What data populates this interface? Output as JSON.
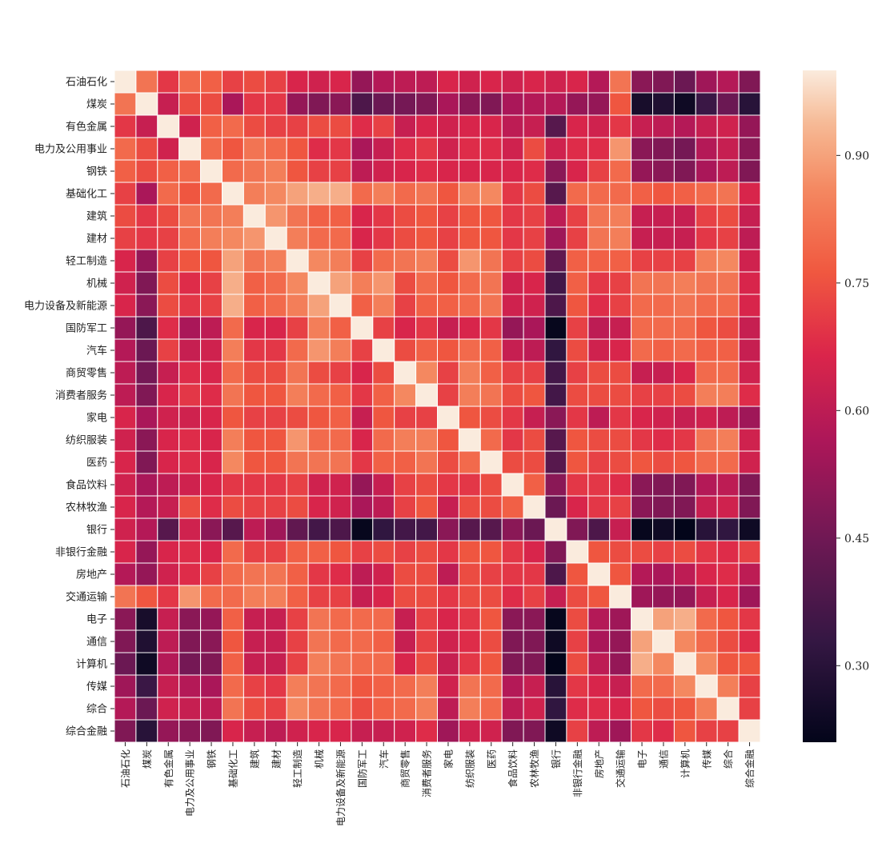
{
  "chart_data": {
    "type": "heatmap",
    "title": "",
    "xlabel": "",
    "ylabel": "",
    "labels": [
      "石油石化",
      "煤炭",
      "有色金属",
      "电力及公用事业",
      "钢铁",
      "基础化工",
      "建筑",
      "建材",
      "轻工制造",
      "机械",
      "电力设备及新能源",
      "国防军工",
      "汽车",
      "商贸零售",
      "消费者服务",
      "家电",
      "纺织服装",
      "医药",
      "食品饮料",
      "农林牧渔",
      "银行",
      "非银行金融",
      "房地产",
      "交通运输",
      "电子",
      "通信",
      "计算机",
      "传媒",
      "综合",
      "综合金融"
    ],
    "value_range": [
      0.21,
      1.0
    ],
    "colorbar_ticks": [
      0.3,
      0.45,
      0.6,
      0.75,
      0.9
    ],
    "colorbar_tick_labels": [
      "0.30",
      "0.45",
      "0.60",
      "0.75",
      "0.90"
    ],
    "colormap": "rocket",
    "cell_borders": "white",
    "matrix": [
      [
        1.0,
        0.82,
        0.7,
        0.8,
        0.78,
        0.72,
        0.74,
        0.72,
        0.66,
        0.64,
        0.66,
        0.52,
        0.58,
        0.6,
        0.6,
        0.66,
        0.64,
        0.66,
        0.64,
        0.66,
        0.64,
        0.66,
        0.58,
        0.82,
        0.5,
        0.48,
        0.44,
        0.54,
        0.58,
        0.48
      ],
      [
        0.82,
        1.0,
        0.62,
        0.74,
        0.74,
        0.56,
        0.7,
        0.7,
        0.52,
        0.48,
        0.5,
        0.38,
        0.44,
        0.46,
        0.48,
        0.56,
        0.5,
        0.48,
        0.56,
        0.58,
        0.58,
        0.52,
        0.52,
        0.76,
        0.26,
        0.28,
        0.24,
        0.34,
        0.44,
        0.3
      ],
      [
        0.7,
        0.62,
        1.0,
        0.64,
        0.78,
        0.8,
        0.74,
        0.72,
        0.72,
        0.74,
        0.74,
        0.68,
        0.72,
        0.62,
        0.66,
        0.64,
        0.66,
        0.66,
        0.6,
        0.62,
        0.4,
        0.66,
        0.64,
        0.7,
        0.62,
        0.6,
        0.58,
        0.62,
        0.64,
        0.52
      ],
      [
        0.8,
        0.74,
        0.64,
        1.0,
        0.8,
        0.76,
        0.82,
        0.8,
        0.76,
        0.68,
        0.7,
        0.56,
        0.62,
        0.68,
        0.7,
        0.64,
        0.68,
        0.68,
        0.64,
        0.74,
        0.64,
        0.68,
        0.68,
        0.88,
        0.5,
        0.48,
        0.46,
        0.58,
        0.62,
        0.5
      ],
      [
        0.78,
        0.74,
        0.78,
        0.8,
        1.0,
        0.8,
        0.82,
        0.84,
        0.76,
        0.72,
        0.72,
        0.6,
        0.64,
        0.66,
        0.68,
        0.66,
        0.66,
        0.66,
        0.66,
        0.68,
        0.5,
        0.66,
        0.72,
        0.8,
        0.52,
        0.5,
        0.48,
        0.56,
        0.6,
        0.48
      ],
      [
        0.72,
        0.56,
        0.8,
        0.76,
        0.8,
        1.0,
        0.84,
        0.86,
        0.9,
        0.92,
        0.92,
        0.8,
        0.84,
        0.8,
        0.82,
        0.76,
        0.84,
        0.86,
        0.7,
        0.74,
        0.4,
        0.8,
        0.8,
        0.8,
        0.78,
        0.76,
        0.78,
        0.8,
        0.82,
        0.66
      ],
      [
        0.74,
        0.7,
        0.74,
        0.82,
        0.82,
        0.84,
        1.0,
        0.88,
        0.82,
        0.78,
        0.78,
        0.66,
        0.7,
        0.74,
        0.76,
        0.72,
        0.76,
        0.76,
        0.7,
        0.72,
        0.6,
        0.72,
        0.82,
        0.84,
        0.62,
        0.62,
        0.62,
        0.72,
        0.74,
        0.62
      ],
      [
        0.72,
        0.7,
        0.72,
        0.8,
        0.84,
        0.86,
        0.88,
        1.0,
        0.84,
        0.8,
        0.8,
        0.66,
        0.7,
        0.74,
        0.76,
        0.72,
        0.76,
        0.76,
        0.7,
        0.72,
        0.54,
        0.72,
        0.82,
        0.84,
        0.62,
        0.62,
        0.62,
        0.7,
        0.72,
        0.6
      ],
      [
        0.66,
        0.52,
        0.72,
        0.76,
        0.76,
        0.9,
        0.82,
        0.84,
        1.0,
        0.86,
        0.84,
        0.72,
        0.8,
        0.82,
        0.84,
        0.74,
        0.88,
        0.82,
        0.72,
        0.74,
        0.42,
        0.78,
        0.78,
        0.78,
        0.72,
        0.72,
        0.72,
        0.84,
        0.86,
        0.64
      ],
      [
        0.64,
        0.48,
        0.74,
        0.68,
        0.72,
        0.92,
        0.78,
        0.8,
        0.86,
        1.0,
        0.9,
        0.84,
        0.88,
        0.74,
        0.8,
        0.76,
        0.8,
        0.82,
        0.64,
        0.66,
        0.36,
        0.78,
        0.7,
        0.72,
        0.82,
        0.82,
        0.84,
        0.82,
        0.82,
        0.66
      ],
      [
        0.66,
        0.5,
        0.74,
        0.7,
        0.72,
        0.92,
        0.78,
        0.8,
        0.84,
        0.9,
        1.0,
        0.78,
        0.84,
        0.72,
        0.78,
        0.78,
        0.8,
        0.82,
        0.64,
        0.64,
        0.38,
        0.76,
        0.68,
        0.72,
        0.8,
        0.8,
        0.82,
        0.8,
        0.8,
        0.66
      ],
      [
        0.52,
        0.38,
        0.68,
        0.56,
        0.6,
        0.8,
        0.66,
        0.66,
        0.72,
        0.84,
        0.78,
        1.0,
        0.72,
        0.66,
        0.7,
        0.62,
        0.66,
        0.7,
        0.52,
        0.56,
        0.22,
        0.72,
        0.6,
        0.62,
        0.8,
        0.8,
        0.8,
        0.76,
        0.74,
        0.62
      ],
      [
        0.58,
        0.44,
        0.72,
        0.62,
        0.64,
        0.84,
        0.7,
        0.7,
        0.8,
        0.88,
        0.84,
        0.72,
        1.0,
        0.74,
        0.78,
        0.76,
        0.8,
        0.78,
        0.62,
        0.6,
        0.32,
        0.74,
        0.64,
        0.66,
        0.8,
        0.78,
        0.8,
        0.78,
        0.78,
        0.62
      ],
      [
        0.6,
        0.46,
        0.62,
        0.68,
        0.66,
        0.8,
        0.74,
        0.74,
        0.82,
        0.74,
        0.72,
        0.66,
        0.74,
        1.0,
        0.86,
        0.72,
        0.84,
        0.78,
        0.72,
        0.72,
        0.36,
        0.72,
        0.74,
        0.74,
        0.62,
        0.62,
        0.66,
        0.8,
        0.8,
        0.64
      ],
      [
        0.6,
        0.48,
        0.66,
        0.7,
        0.68,
        0.82,
        0.76,
        0.76,
        0.84,
        0.8,
        0.78,
        0.7,
        0.78,
        0.86,
        1.0,
        0.72,
        0.84,
        0.82,
        0.74,
        0.76,
        0.36,
        0.74,
        0.74,
        0.74,
        0.72,
        0.72,
        0.74,
        0.84,
        0.84,
        0.68
      ],
      [
        0.66,
        0.56,
        0.64,
        0.64,
        0.66,
        0.76,
        0.72,
        0.72,
        0.74,
        0.76,
        0.78,
        0.62,
        0.76,
        0.72,
        0.72,
        1.0,
        0.76,
        0.74,
        0.7,
        0.62,
        0.5,
        0.7,
        0.6,
        0.7,
        0.66,
        0.64,
        0.62,
        0.64,
        0.6,
        0.54
      ],
      [
        0.64,
        0.5,
        0.66,
        0.68,
        0.66,
        0.84,
        0.76,
        0.76,
        0.88,
        0.8,
        0.8,
        0.66,
        0.8,
        0.84,
        0.84,
        0.76,
        1.0,
        0.8,
        0.7,
        0.74,
        0.4,
        0.76,
        0.74,
        0.74,
        0.7,
        0.68,
        0.7,
        0.82,
        0.84,
        0.64
      ],
      [
        0.66,
        0.48,
        0.66,
        0.68,
        0.66,
        0.86,
        0.76,
        0.76,
        0.82,
        0.82,
        0.82,
        0.7,
        0.78,
        0.78,
        0.82,
        0.74,
        0.8,
        1.0,
        0.74,
        0.74,
        0.4,
        0.76,
        0.72,
        0.74,
        0.76,
        0.74,
        0.76,
        0.8,
        0.8,
        0.64
      ],
      [
        0.64,
        0.56,
        0.6,
        0.64,
        0.66,
        0.7,
        0.7,
        0.7,
        0.72,
        0.64,
        0.64,
        0.52,
        0.62,
        0.72,
        0.74,
        0.7,
        0.7,
        0.74,
        1.0,
        0.78,
        0.5,
        0.7,
        0.7,
        0.68,
        0.5,
        0.48,
        0.48,
        0.58,
        0.6,
        0.48
      ],
      [
        0.66,
        0.58,
        0.62,
        0.74,
        0.68,
        0.74,
        0.72,
        0.72,
        0.74,
        0.66,
        0.64,
        0.56,
        0.6,
        0.72,
        0.76,
        0.62,
        0.74,
        0.74,
        0.78,
        1.0,
        0.44,
        0.66,
        0.7,
        0.72,
        0.5,
        0.48,
        0.48,
        0.62,
        0.64,
        0.48
      ],
      [
        0.64,
        0.58,
        0.4,
        0.64,
        0.5,
        0.4,
        0.6,
        0.54,
        0.42,
        0.36,
        0.38,
        0.22,
        0.32,
        0.36,
        0.36,
        0.5,
        0.4,
        0.4,
        0.5,
        0.44,
        1.0,
        0.48,
        0.38,
        0.62,
        0.22,
        0.24,
        0.21,
        0.3,
        0.32,
        0.24
      ],
      [
        0.66,
        0.52,
        0.66,
        0.68,
        0.66,
        0.8,
        0.72,
        0.72,
        0.78,
        0.78,
        0.76,
        0.72,
        0.74,
        0.72,
        0.74,
        0.7,
        0.76,
        0.76,
        0.7,
        0.66,
        0.48,
        1.0,
        0.76,
        0.74,
        0.74,
        0.72,
        0.74,
        0.7,
        0.68,
        0.72
      ],
      [
        0.58,
        0.52,
        0.64,
        0.68,
        0.72,
        0.8,
        0.82,
        0.82,
        0.78,
        0.7,
        0.68,
        0.6,
        0.64,
        0.74,
        0.74,
        0.6,
        0.74,
        0.72,
        0.7,
        0.7,
        0.38,
        0.76,
        1.0,
        0.76,
        0.58,
        0.56,
        0.6,
        0.66,
        0.68,
        0.6
      ],
      [
        0.82,
        0.76,
        0.7,
        0.88,
        0.8,
        0.8,
        0.84,
        0.84,
        0.78,
        0.72,
        0.72,
        0.62,
        0.66,
        0.74,
        0.74,
        0.7,
        0.74,
        0.74,
        0.68,
        0.72,
        0.62,
        0.74,
        0.76,
        1.0,
        0.54,
        0.52,
        0.52,
        0.62,
        0.66,
        0.54
      ],
      [
        0.5,
        0.26,
        0.62,
        0.5,
        0.52,
        0.78,
        0.62,
        0.62,
        0.72,
        0.82,
        0.8,
        0.8,
        0.8,
        0.62,
        0.72,
        0.66,
        0.7,
        0.76,
        0.5,
        0.5,
        0.22,
        0.74,
        0.58,
        0.54,
        1.0,
        0.9,
        0.92,
        0.8,
        0.76,
        0.7
      ],
      [
        0.48,
        0.28,
        0.6,
        0.48,
        0.5,
        0.76,
        0.62,
        0.62,
        0.72,
        0.82,
        0.8,
        0.8,
        0.78,
        0.62,
        0.72,
        0.64,
        0.68,
        0.74,
        0.48,
        0.48,
        0.24,
        0.72,
        0.56,
        0.52,
        0.9,
        1.0,
        0.86,
        0.8,
        0.74,
        0.68
      ],
      [
        0.44,
        0.24,
        0.58,
        0.46,
        0.48,
        0.78,
        0.62,
        0.62,
        0.72,
        0.84,
        0.82,
        0.8,
        0.8,
        0.66,
        0.74,
        0.62,
        0.7,
        0.76,
        0.48,
        0.48,
        0.21,
        0.74,
        0.6,
        0.52,
        0.92,
        0.86,
        1.0,
        0.86,
        0.76,
        0.76
      ],
      [
        0.54,
        0.34,
        0.62,
        0.58,
        0.56,
        0.8,
        0.72,
        0.7,
        0.84,
        0.82,
        0.8,
        0.76,
        0.78,
        0.8,
        0.84,
        0.64,
        0.82,
        0.8,
        0.58,
        0.62,
        0.3,
        0.7,
        0.66,
        0.62,
        0.8,
        0.8,
        0.86,
        1.0,
        0.84,
        0.72
      ],
      [
        0.58,
        0.44,
        0.64,
        0.62,
        0.6,
        0.82,
        0.74,
        0.72,
        0.86,
        0.82,
        0.8,
        0.74,
        0.78,
        0.8,
        0.84,
        0.6,
        0.84,
        0.8,
        0.6,
        0.64,
        0.32,
        0.68,
        0.68,
        0.66,
        0.76,
        0.74,
        0.76,
        0.84,
        1.0,
        0.72
      ],
      [
        0.48,
        0.3,
        0.52,
        0.5,
        0.48,
        0.66,
        0.62,
        0.6,
        0.64,
        0.66,
        0.66,
        0.62,
        0.62,
        0.64,
        0.68,
        0.54,
        0.64,
        0.64,
        0.48,
        0.48,
        0.24,
        0.72,
        0.6,
        0.54,
        0.7,
        0.68,
        0.76,
        0.72,
        0.72,
        1.0
      ]
    ]
  }
}
